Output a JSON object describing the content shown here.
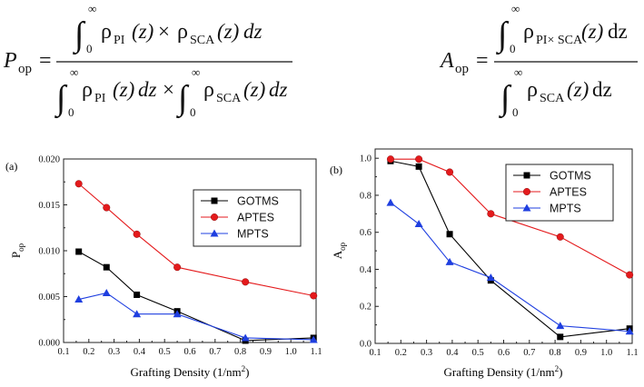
{
  "formulas": {
    "p_op": {
      "lhs_symbol": "P",
      "lhs_sub": "op",
      "equals": "=",
      "integral_upper": "∞",
      "integral_lower": "0",
      "rho": "ρ",
      "sub_pi": "PI",
      "sub_sca": "SCA",
      "arg": "(z)",
      "times": "×",
      "dz": "dz"
    },
    "a_op": {
      "lhs_symbol": "A",
      "lhs_sub": "op",
      "equals": "=",
      "integral_upper": "∞",
      "integral_lower": "0",
      "rho": "ρ",
      "num_sub": "PI× SCA",
      "den_sub": "SCA",
      "arg": "(z)",
      "dz": "dz"
    }
  },
  "chart_data": [
    {
      "type": "line",
      "panel_label": "(a)",
      "xlabel": "Grafting Density (1/nm",
      "xlabel_sup": "2",
      "xlabel_close": ")",
      "ylabel": "P",
      "ylabel_sub": "op",
      "xlim": [
        0.1,
        1.1
      ],
      "ylim": [
        0.0,
        0.02
      ],
      "xticks": [
        "0.1",
        "0.2",
        "0.3",
        "0.4",
        "0.5",
        "0.6",
        "0.7",
        "0.8",
        "0.9",
        "1.0",
        "1.1"
      ],
      "yticks": [
        "0.000",
        "0.005",
        "0.010",
        "0.015",
        "0.020"
      ],
      "legend_position": "upper-right",
      "series": [
        {
          "name": "GOTMS",
          "color": "#000000",
          "marker": "square",
          "x": [
            0.16,
            0.27,
            0.39,
            0.55,
            0.82,
            1.09
          ],
          "y": [
            0.0099,
            0.0082,
            0.0052,
            0.0034,
            0.0002,
            0.0005
          ]
        },
        {
          "name": "APTES",
          "color": "#e41a1c",
          "marker": "circle",
          "x": [
            0.16,
            0.27,
            0.39,
            0.55,
            0.82,
            1.09
          ],
          "y": [
            0.0173,
            0.0147,
            0.0118,
            0.0082,
            0.0066,
            0.0051
          ]
        },
        {
          "name": "MPTS",
          "color": "#1f3fe0",
          "marker": "triangle",
          "x": [
            0.16,
            0.27,
            0.39,
            0.55,
            0.82,
            1.09
          ],
          "y": [
            0.0047,
            0.0054,
            0.0031,
            0.0031,
            0.0005,
            0.0003
          ]
        }
      ]
    },
    {
      "type": "line",
      "panel_label": "(b)",
      "xlabel": "Grafting Density (1/nm",
      "xlabel_sup": "2",
      "xlabel_close": ")",
      "ylabel": "A",
      "ylabel_sub": "op",
      "xlim": [
        0.1,
        1.1
      ],
      "ylim": [
        0.0,
        1.05
      ],
      "xticks": [
        "0.1",
        "0.2",
        "0.3",
        "0.4",
        "0.5",
        "0.6",
        "0.7",
        "0.8",
        "0.9",
        "1.0",
        "1.1"
      ],
      "yticks": [
        "0.0",
        "0.2",
        "0.4",
        "0.6",
        "0.8",
        "1.0"
      ],
      "legend_position": "upper-right",
      "series": [
        {
          "name": "GOTMS",
          "color": "#000000",
          "marker": "square",
          "x": [
            0.16,
            0.27,
            0.39,
            0.55,
            0.82,
            1.09
          ],
          "y": [
            0.985,
            0.955,
            0.59,
            0.34,
            0.035,
            0.08
          ]
        },
        {
          "name": "APTES",
          "color": "#e41a1c",
          "marker": "circle",
          "x": [
            0.16,
            0.27,
            0.39,
            0.55,
            0.82,
            1.09
          ],
          "y": [
            0.995,
            0.995,
            0.925,
            0.7,
            0.575,
            0.37
          ]
        },
        {
          "name": "MPTS",
          "color": "#1f3fe0",
          "marker": "triangle",
          "x": [
            0.16,
            0.27,
            0.39,
            0.55,
            0.82,
            1.09
          ],
          "y": [
            0.76,
            0.645,
            0.44,
            0.355,
            0.095,
            0.065
          ]
        }
      ]
    }
  ]
}
